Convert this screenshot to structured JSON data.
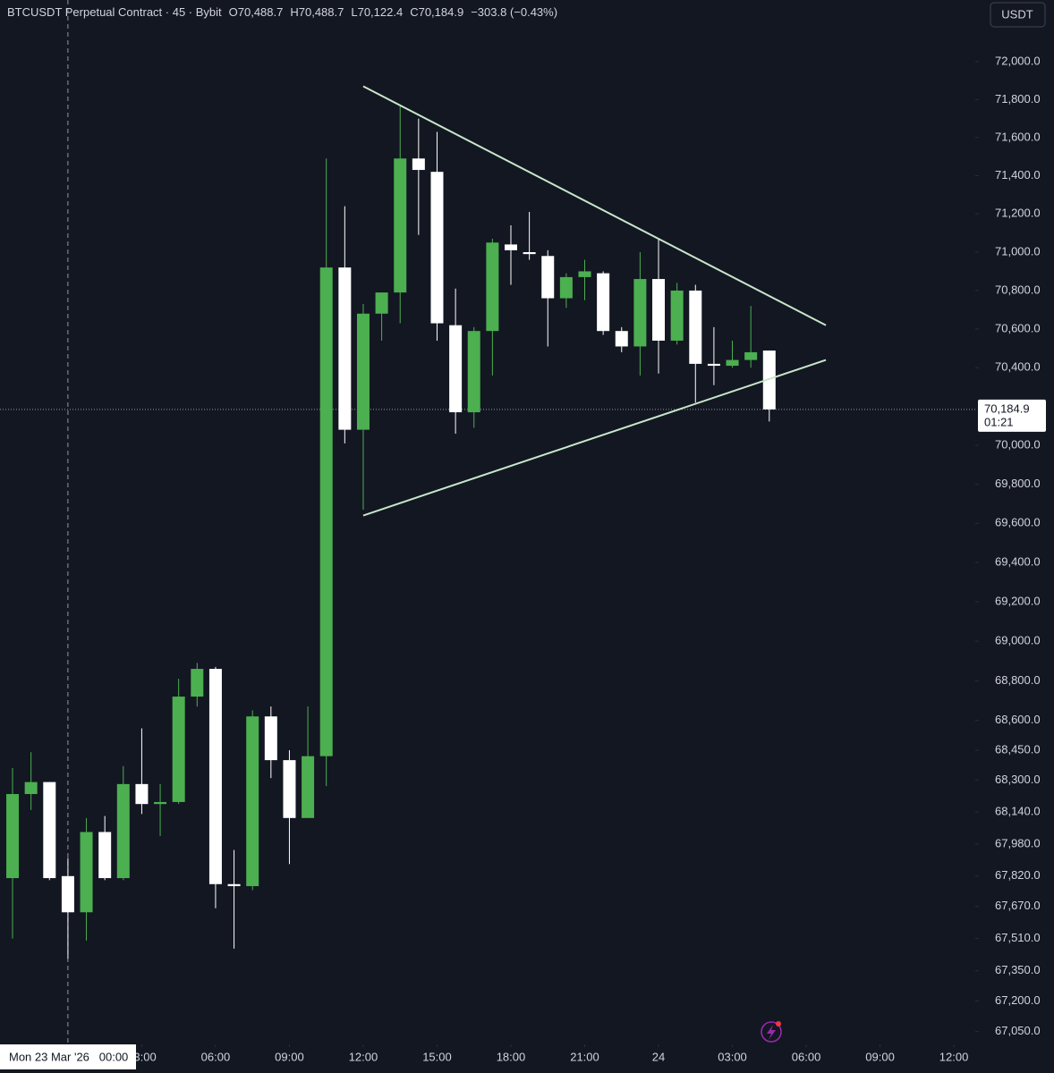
{
  "chart_data": {
    "type": "candlestick",
    "header": {
      "symbol": "BTCUSDT Perpetual Contract · 45 · Bybit",
      "ohlc": [
        {
          "key": "O",
          "value": "70,488.7"
        },
        {
          "key": "H",
          "value": "70,488.7"
        },
        {
          "key": "L",
          "value": "70,122.4"
        },
        {
          "key": "C",
          "value": "70,184.9"
        }
      ],
      "change": "−303.8 (−0.43%)"
    },
    "currency_button": "USDT",
    "up_color": "#4caf50",
    "down_color": "#ffffff",
    "x": [
      -2.25,
      -1.5,
      -0.75,
      0,
      0.75,
      1.5,
      2.25,
      3,
      3.75,
      4.5,
      5.25,
      6,
      6.75,
      7.5,
      8.25,
      9,
      9.75,
      10.5,
      11.25,
      12,
      12.75,
      13.5,
      14.25,
      15,
      15.75,
      16.5,
      17.25,
      18,
      18.75,
      19.5,
      20.25,
      21,
      21.75,
      22.5,
      23.25,
      24,
      24.75,
      25.5,
      26.25,
      27,
      27.75,
      28.5
    ],
    "open": [
      67810,
      68230,
      68290,
      67820,
      67640,
      68040,
      67810,
      68280,
      68180,
      68190,
      68720,
      68860,
      67780,
      67770,
      68620,
      68400,
      68110,
      68420,
      70920,
      70080,
      70680,
      70790,
      71490,
      71420,
      70620,
      70170,
      70590,
      71040,
      71000,
      70980,
      70760,
      70870,
      70890,
      70590,
      70510,
      70860,
      70540,
      70800,
      70420,
      70410,
      70440,
      70488.7
    ],
    "high": [
      68360,
      68440,
      68290,
      67910,
      68110,
      68120,
      68370,
      68560,
      68280,
      68810,
      68890,
      68870,
      67950,
      68650,
      68670,
      68450,
      68670,
      71490,
      71240,
      70730,
      70790,
      71770,
      71700,
      71630,
      70810,
      70610,
      71070,
      71140,
      71210,
      71010,
      70890,
      70960,
      70900,
      70610,
      71000,
      71070,
      70840,
      70830,
      70610,
      70540,
      70720,
      70488.7
    ],
    "low": [
      67510,
      68150,
      67800,
      67410,
      67500,
      67800,
      67800,
      68130,
      68020,
      68180,
      68670,
      67660,
      67460,
      67750,
      68310,
      67880,
      68110,
      68270,
      70010,
      69670,
      70540,
      70630,
      71090,
      70540,
      70060,
      70090,
      70360,
      70830,
      70960,
      70510,
      70710,
      70750,
      70570,
      70480,
      70360,
      70370,
      70520,
      70220,
      70310,
      70400,
      70400,
      70122.4
    ],
    "close": [
      68230,
      68290,
      67810,
      67640,
      68040,
      67810,
      68280,
      68180,
      68190,
      68720,
      68860,
      67780,
      67770,
      68620,
      68400,
      68110,
      68420,
      70920,
      70080,
      70680,
      70790,
      71490,
      71430,
      70630,
      70170,
      70590,
      71050,
      71010,
      70990,
      70760,
      70870,
      70900,
      70590,
      70510,
      70860,
      70540,
      70800,
      70420,
      70410,
      70440,
      70480,
      70184.9
    ],
    "xlim": [
      -2.76,
      36.87
    ],
    "xticks": [
      {
        "value": 3,
        "label": "03:00"
      },
      {
        "value": 6,
        "label": "06:00"
      },
      {
        "value": 9,
        "label": "09:00"
      },
      {
        "value": 12,
        "label": "12:00"
      },
      {
        "value": 15,
        "label": "15:00"
      },
      {
        "value": 18,
        "label": "18:00"
      },
      {
        "value": 21,
        "label": "21:00"
      },
      24,
      {
        "value": 27,
        "label": "03:00"
      },
      {
        "value": 30,
        "label": "06:00"
      },
      {
        "value": 33,
        "label": "09:00"
      },
      {
        "value": 36,
        "label": "12:00"
      }
    ],
    "ylim": [
      66987,
      72327
    ],
    "log_scale": true,
    "grid": false,
    "yticks": [
      {
        "value": 72000,
        "label": "72,000.0"
      },
      {
        "value": 71800,
        "label": "71,800.0"
      },
      {
        "value": 71600,
        "label": "71,600.0"
      },
      {
        "value": 71400,
        "label": "71,400.0"
      },
      {
        "value": 71200,
        "label": "71,200.0"
      },
      {
        "value": 71000,
        "label": "71,000.0"
      },
      {
        "value": 70800,
        "label": "70,800.0"
      },
      {
        "value": 70600,
        "label": "70,600.0"
      },
      {
        "value": 70400,
        "label": "70,400.0"
      },
      {
        "value": 70000,
        "label": "70,000.0"
      },
      {
        "value": 69800,
        "label": "69,800.0"
      },
      {
        "value": 69600,
        "label": "69,600.0"
      },
      {
        "value": 69400,
        "label": "69,400.0"
      },
      {
        "value": 69200,
        "label": "69,200.0"
      },
      {
        "value": 69000,
        "label": "69,000.0"
      },
      {
        "value": 68800,
        "label": "68,800.0"
      },
      {
        "value": 68600,
        "label": "68,600.0"
      },
      {
        "value": 68450,
        "label": "68,450.0"
      },
      {
        "value": 68300,
        "label": "68,300.0"
      },
      {
        "value": 68140,
        "label": "68,140.0"
      },
      {
        "value": 67980,
        "label": "67,980.0"
      },
      {
        "value": 67820,
        "label": "67,820.0"
      },
      {
        "value": 67670,
        "label": "67,670.0"
      },
      {
        "value": 67510,
        "label": "67,510.0"
      },
      {
        "value": 67350,
        "label": "67,350.0"
      },
      {
        "value": 67200,
        "label": "67,200.0"
      },
      {
        "value": 67050,
        "label": "67,050.0"
      }
    ],
    "last_price": {
      "value": 70184.9,
      "label": "70,184.9",
      "countdown": "01:21"
    },
    "crosshair": {
      "x": 0,
      "label": "Mon 23 Mar '26   00:00"
    },
    "trendlines": [
      {
        "points": [
          [
            12,
            71870
          ],
          [
            30.8,
            70620
          ]
        ],
        "color": "#c8e6c9"
      },
      {
        "points": [
          [
            12,
            69640
          ],
          [
            30.8,
            70440
          ]
        ],
        "color": "#c8e6c9"
      }
    ]
  }
}
